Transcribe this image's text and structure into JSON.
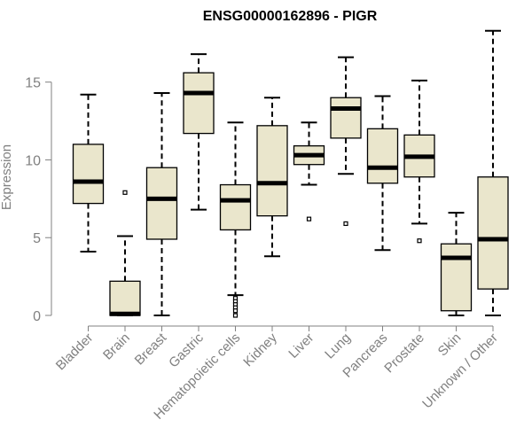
{
  "chart_data": {
    "type": "box",
    "title": "ENSG00000162896 - PIGR",
    "xlabel": "",
    "ylabel": "Expression",
    "ylim": [
      0,
      18
    ],
    "yticks": [
      0,
      5,
      10,
      15
    ],
    "categories": [
      "Bladder",
      "Brain",
      "Breast",
      "Gastric",
      "Hematopoietic cells",
      "Kidney",
      "Liver",
      "Lung",
      "Pancreas",
      "Prostate",
      "Skin",
      "Unknown / Other"
    ],
    "boxes": [
      {
        "name": "Bladder",
        "min": 4.1,
        "q1": 7.2,
        "median": 8.6,
        "q3": 11.0,
        "max": 14.2,
        "outliers": []
      },
      {
        "name": "Brain",
        "min": 0.0,
        "q1": 0.0,
        "median": 0.1,
        "q3": 2.2,
        "max": 5.1,
        "outliers": [
          7.9
        ]
      },
      {
        "name": "Breast",
        "min": 0.0,
        "q1": 4.9,
        "median": 7.5,
        "q3": 9.5,
        "max": 14.3,
        "outliers": []
      },
      {
        "name": "Gastric",
        "min": 6.8,
        "q1": 11.7,
        "median": 14.3,
        "q3": 15.6,
        "max": 16.8,
        "outliers": []
      },
      {
        "name": "Hematopoietic cells",
        "min": 1.3,
        "q1": 5.5,
        "median": 7.4,
        "q3": 8.4,
        "max": 12.4,
        "outliers": [
          1.1,
          0.9,
          0.7,
          0.5,
          0.3,
          0.0
        ]
      },
      {
        "name": "Kidney",
        "min": 3.8,
        "q1": 6.4,
        "median": 8.5,
        "q3": 12.2,
        "max": 14.0,
        "outliers": []
      },
      {
        "name": "Liver",
        "min": 8.4,
        "q1": 9.7,
        "median": 10.3,
        "q3": 10.9,
        "max": 12.4,
        "outliers": [
          6.2
        ]
      },
      {
        "name": "Lung",
        "min": 9.1,
        "q1": 11.4,
        "median": 13.3,
        "q3": 14.0,
        "max": 16.6,
        "outliers": [
          5.9
        ]
      },
      {
        "name": "Pancreas",
        "min": 4.2,
        "q1": 8.5,
        "median": 9.5,
        "q3": 12.0,
        "max": 14.1,
        "outliers": []
      },
      {
        "name": "Prostate",
        "min": 5.9,
        "q1": 8.9,
        "median": 10.2,
        "q3": 11.6,
        "max": 15.1,
        "outliers": [
          4.8
        ]
      },
      {
        "name": "Skin",
        "min": 0.0,
        "q1": 0.3,
        "median": 3.7,
        "q3": 4.6,
        "max": 6.6,
        "outliers": []
      },
      {
        "name": "Unknown / Other",
        "min": 0.0,
        "q1": 1.7,
        "median": 4.9,
        "q3": 8.9,
        "max": 18.3,
        "outliers": []
      }
    ]
  },
  "colors": {
    "box_fill": "#EAE6CC",
    "box_stroke": "#000000",
    "median": "#000000",
    "axis": "#808080",
    "tick_label": "#808080",
    "title": "#000000",
    "ylabel": "#808080"
  }
}
